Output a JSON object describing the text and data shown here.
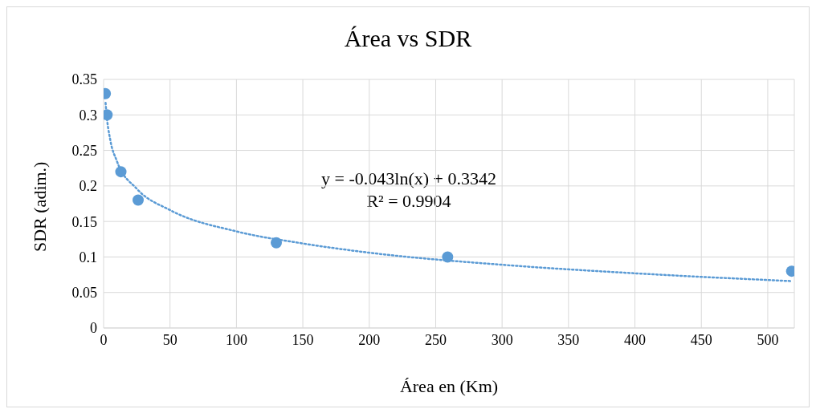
{
  "chart_data": {
    "type": "scatter",
    "title": "Área vs SDR",
    "xlabel": "Área en (Km)",
    "ylabel": "SDR (adim.)",
    "x": [
      1.3,
      2.6,
      13,
      26,
      130,
      259,
      518
    ],
    "values": [
      0.33,
      0.3,
      0.22,
      0.18,
      0.12,
      0.1,
      0.08
    ],
    "color": "#5b9bd5",
    "marker": "circle",
    "series": [
      {
        "type": "line",
        "color": "#5b9bd5",
        "line_style": "dotted",
        "marker": "none",
        "x": [
          1.5,
          2,
          5,
          10,
          25,
          50,
          100,
          150,
          200,
          300,
          400,
          518
        ],
        "values": [
          0.317,
          0.305,
          0.265,
          0.235,
          0.196,
          0.166,
          0.136,
          0.119,
          0.106,
          0.089,
          0.077,
          0.066
        ]
      }
    ],
    "xlim": [
      0,
      520
    ],
    "xticks": [
      0,
      50,
      100,
      150,
      200,
      250,
      300,
      350,
      400,
      450,
      500
    ],
    "ylim": [
      0,
      0.35
    ],
    "yticks": [
      0,
      0.05,
      0.1,
      0.15,
      0.2,
      0.25,
      0.3,
      0.35
    ],
    "grid": true,
    "annotations": [
      "y = -0.043ln(x) + 0.3342",
      "R² = 0.9904"
    ]
  }
}
